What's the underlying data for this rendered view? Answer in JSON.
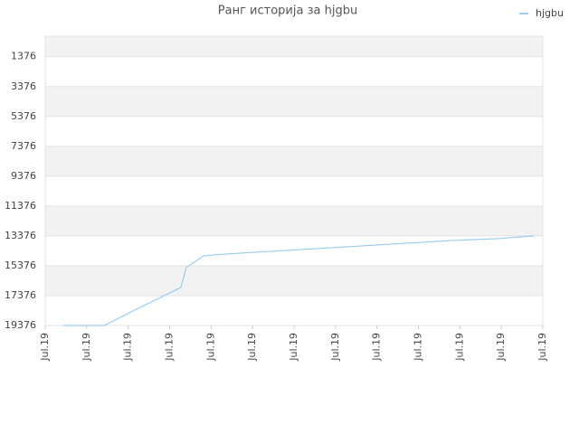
{
  "chart_data": {
    "type": "line",
    "title": "Ранг историја за hjgbu",
    "x": [
      0.44,
      1.42,
      2.07,
      3.27,
      3.4,
      3.82,
      4.36,
      5.45,
      6.55,
      7.64,
      8.73,
      9.82,
      10.91,
      11.78
    ],
    "series": [
      {
        "name": "hjgbu",
        "color": "#99ccee",
        "values": [
          19376,
          19376,
          18467,
          16831,
          15497,
          14709,
          14588,
          14406,
          14224,
          14043,
          13861,
          13679,
          13558,
          13376
        ]
      }
    ],
    "xlim": [
      0,
      12
    ],
    "xticks": [
      {
        "value": 0,
        "label": "Jul.19"
      },
      {
        "value": 1,
        "label": "Jul.19"
      },
      {
        "value": 2,
        "label": "Jul.19"
      },
      {
        "value": 3,
        "label": "Jul.19"
      },
      {
        "value": 4,
        "label": "Jul.19"
      },
      {
        "value": 5,
        "label": "Jul.19"
      },
      {
        "value": 6,
        "label": "Jul.19"
      },
      {
        "value": 7,
        "label": "Jul.19"
      },
      {
        "value": 8,
        "label": "Jul.19"
      },
      {
        "value": 9,
        "label": "Jul.19"
      },
      {
        "value": 10,
        "label": "Jul.19"
      },
      {
        "value": 11,
        "label": "Jul.19"
      },
      {
        "value": 12,
        "label": "Jul.19"
      }
    ],
    "ylim": [
      19376,
      0
    ],
    "yticks": [
      1376,
      3376,
      5376,
      7376,
      9376,
      11376,
      13376,
      15376,
      17376,
      19376
    ],
    "grid": true,
    "legend": "top-right"
  }
}
